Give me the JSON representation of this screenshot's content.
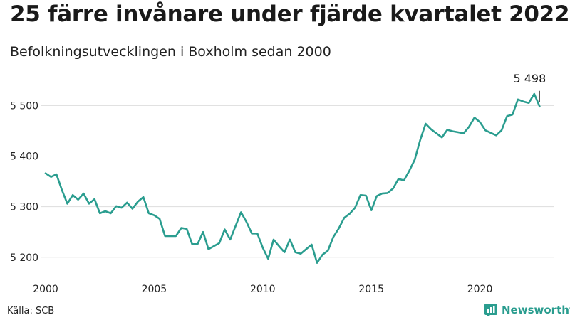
{
  "header": {
    "title": "25 färre invånare under fjärde kvartalet 2022",
    "subtitle": "Befolkningsutvecklingen i Boxholm sedan 2000"
  },
  "footer": {
    "source": "Källa: SCB",
    "brand": "Newsworthy"
  },
  "colors": {
    "line": "#2a9d8f",
    "grid": "#dddddd",
    "brand": "#2a9d8f"
  },
  "chart_data": {
    "type": "line",
    "title": "25 färre invånare under fjärde kvartalet 2022",
    "subtitle": "Befolkningsutvecklingen i Boxholm sedan 2000",
    "xlabel": "",
    "ylabel": "",
    "xlim": [
      2000,
      2023
    ],
    "ylim": [
      5180,
      5530
    ],
    "x_ticks": [
      2000,
      2005,
      2010,
      2015,
      2020
    ],
    "x_tick_labels": [
      "2000",
      "2005",
      "2010",
      "2015",
      "2020"
    ],
    "y_ticks": [
      5200,
      5300,
      5400,
      5500
    ],
    "y_tick_labels": [
      "5 200",
      "5 300",
      "5 400",
      "5 500"
    ],
    "grid": "horizontal",
    "end_label": "5 498",
    "series": [
      {
        "x": [
          2000.0,
          2000.25,
          2000.5,
          2000.75,
          2001.0,
          2001.25,
          2001.5,
          2001.75,
          2002.0,
          2002.25,
          2002.5,
          2002.75,
          2003.0,
          2003.25,
          2003.5,
          2003.75,
          2004.0,
          2004.25,
          2004.5,
          2004.75,
          2005.0,
          2005.25,
          2005.5,
          2005.75,
          2006.0,
          2006.25,
          2006.5,
          2006.75,
          2007.0,
          2007.25,
          2007.5,
          2007.75,
          2008.0,
          2008.25,
          2008.5,
          2008.75,
          2009.0,
          2009.25,
          2009.5,
          2009.75,
          2010.0,
          2010.25,
          2010.5,
          2010.75,
          2011.0,
          2011.25,
          2011.5,
          2011.75,
          2012.0,
          2012.25,
          2012.5,
          2012.75,
          2013.0,
          2013.25,
          2013.5,
          2013.75,
          2014.0,
          2014.25,
          2014.5,
          2014.75,
          2015.0,
          2015.25,
          2015.5,
          2015.75,
          2016.0,
          2016.25,
          2016.5,
          2016.75,
          2017.0,
          2017.25,
          2017.5,
          2017.75,
          2018.0,
          2018.25,
          2018.5,
          2018.75,
          2019.0,
          2019.25,
          2019.5,
          2019.75,
          2020.0,
          2020.25,
          2020.5,
          2020.75,
          2021.0,
          2021.25,
          2021.5,
          2021.75,
          2022.0,
          2022.25,
          2022.5,
          2022.75
        ],
        "values": [
          5366,
          5359,
          5364,
          5333,
          5306,
          5323,
          5314,
          5326,
          5306,
          5315,
          5287,
          5291,
          5287,
          5301,
          5298,
          5308,
          5296,
          5310,
          5319,
          5287,
          5283,
          5276,
          5242,
          5242,
          5242,
          5258,
          5256,
          5226,
          5226,
          5250,
          5216,
          5222,
          5228,
          5255,
          5235,
          5262,
          5289,
          5270,
          5247,
          5247,
          5219,
          5197,
          5235,
          5222,
          5210,
          5235,
          5210,
          5207,
          5216,
          5225,
          5189,
          5205,
          5213,
          5240,
          5257,
          5278,
          5286,
          5298,
          5323,
          5322,
          5293,
          5321,
          5326,
          5327,
          5336,
          5355,
          5352,
          5371,
          5393,
          5432,
          5464,
          5453,
          5445,
          5437,
          5452,
          5449,
          5447,
          5445,
          5458,
          5476,
          5467,
          5451,
          5446,
          5441,
          5451,
          5479,
          5482,
          5512,
          5508,
          5505,
          5523,
          5498
        ]
      }
    ]
  }
}
